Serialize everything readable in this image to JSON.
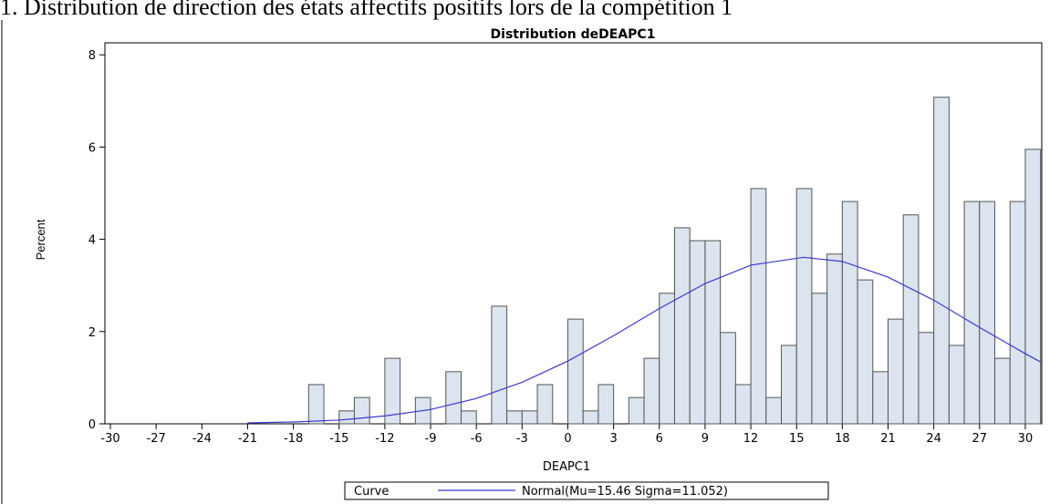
{
  "chart_data": {
    "type": "histogram",
    "caption": "1. Distribution de direction des états affectifs positifs lors de la compétition 1",
    "title": "Distribution deDEAPC1",
    "xlabel": "DEAPC1",
    "ylabel": "Percent",
    "bins": [
      -17,
      -16,
      -15,
      -14,
      -13,
      -12,
      -11,
      -10,
      -9,
      -8,
      -7,
      -6,
      -5,
      -4,
      -3,
      -2,
      -1,
      0,
      1,
      2,
      3,
      4,
      5,
      6,
      7,
      8,
      9,
      10,
      11,
      12,
      13,
      14,
      15,
      16,
      17,
      18,
      19,
      20,
      21,
      22,
      23,
      24,
      25,
      26,
      27,
      28,
      29,
      30,
      31
    ],
    "values": [
      0.85,
      0,
      0.28,
      0.57,
      0,
      1.42,
      0,
      0.57,
      0,
      1.13,
      0.28,
      0,
      2.55,
      0.28,
      0.28,
      0.85,
      0,
      2.27,
      0.28,
      0.85,
      0,
      0.57,
      1.42,
      2.83,
      4.25,
      3.97,
      3.97,
      1.98,
      0.85,
      5.1,
      0.57,
      1.7,
      5.1,
      2.83,
      3.68,
      4.82,
      3.12,
      1.13,
      2.27,
      4.53,
      1.98,
      7.08,
      1.7,
      4.82,
      4.82,
      1.42,
      4.82,
      5.95
    ],
    "color": "#dbe4ef",
    "edge_color": "#555555",
    "legend_title": "Curve",
    "series": [
      {
        "name": "Normal(Mu=15.46 Sigma=11.052)",
        "color": "#3a3acf",
        "x": [
          -21,
          -18,
          -15,
          -12,
          -9,
          -6,
          -3,
          0,
          3,
          6,
          9,
          12,
          15.46,
          18,
          21,
          24,
          27,
          30,
          31
        ],
        "values": [
          0.02,
          0.04,
          0.08,
          0.17,
          0.31,
          0.55,
          0.9,
          1.36,
          1.91,
          2.5,
          3.04,
          3.44,
          3.61,
          3.52,
          3.18,
          2.68,
          2.09,
          1.52,
          1.34
        ]
      }
    ],
    "xlim": [
      -30.36,
      31.08
    ],
    "ylim": [
      0,
      8.26
    ],
    "xticks": [
      -30,
      -27,
      -24,
      -21,
      -18,
      -15,
      -12,
      -9,
      -6,
      -3,
      0,
      3,
      6,
      9,
      12,
      15,
      18,
      21,
      24,
      27,
      30
    ],
    "yticks": [
      0,
      2,
      4,
      6,
      8
    ]
  }
}
